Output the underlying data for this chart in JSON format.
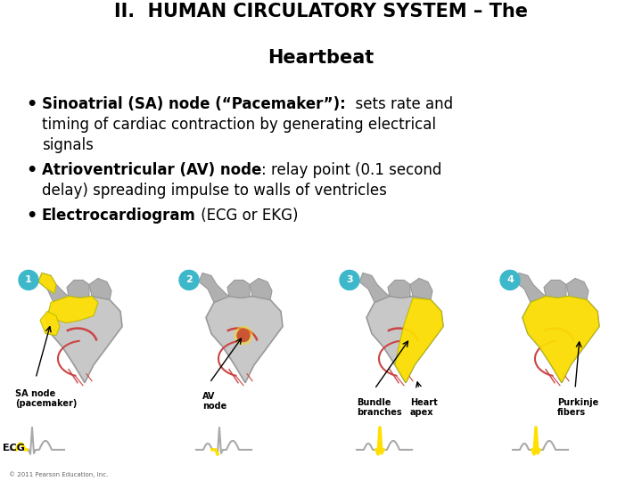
{
  "title_line1": "II.  HUMAN CIRCULATORY SYSTEM – The",
  "title_line2": "Heartbeat",
  "b1_bold": "Sinoatrial (SA) node (“Pacemaker”):",
  "b1_rest_line1": "  sets rate and",
  "b1_line2": "timing of cardiac contraction by generating electrical",
  "b1_line3": "signals",
  "b2_bold": "Atrioventricular (AV) node",
  "b2_rest_line1": ": relay point (0.1 second",
  "b2_line2": "delay) spreading impulse to walls of ventricles",
  "b3_bold": "Electrocardiogram",
  "b3_rest": " (ECG or EKG)",
  "background_color": "#ffffff",
  "text_color": "#000000",
  "title_fs": 15,
  "bullet_fs": 12,
  "teal": "#3cb8ca",
  "yellow": "#ffe000",
  "gray_heart": "#c8c8c8",
  "gray_vessel": "#b0b0b0",
  "red_vessel": "#cc4444",
  "ecg_gray": "#aaaaaa",
  "copyright": "© 2011 Pearson Education, Inc.",
  "circle_labels": [
    "1",
    "2",
    "3",
    "4"
  ],
  "heart_labels": [
    "SA node\n(pacemaker)",
    "AV\nnode",
    "Bundle\nbranches",
    "Purkinje\nfibers"
  ],
  "heart_labels2": [
    "",
    "",
    "Heart\napex",
    ""
  ],
  "ecg_label": "ECG"
}
